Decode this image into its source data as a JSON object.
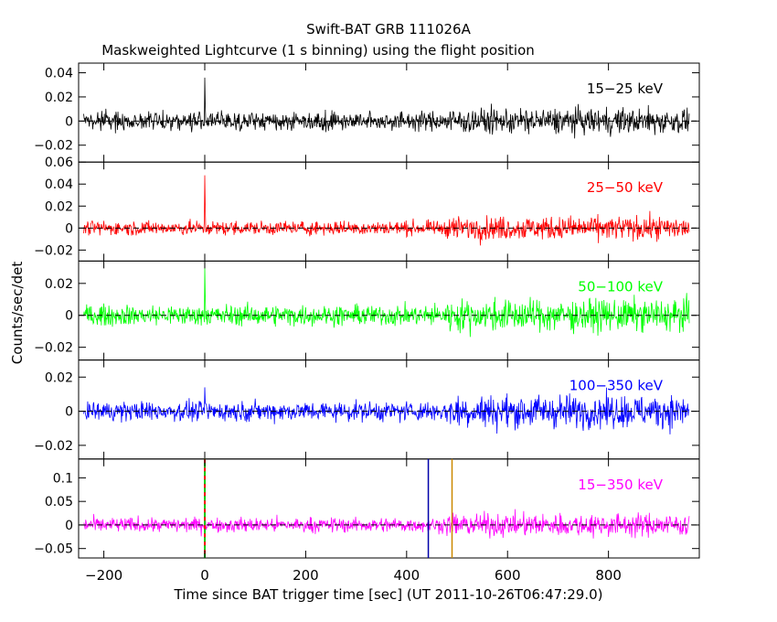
{
  "chart_data": {
    "type": "line",
    "title": "Swift-BAT GRB 111026A",
    "subtitle": "Maskweighted Lightcurve (1 s binning) using the flight position",
    "xlabel": "Time since BAT trigger time [sec] (UT 2011-10-26T06:47:29.0)",
    "ylabel": "Counts/sec/det",
    "xlim": [
      -250,
      980
    ],
    "xticks": [
      -200,
      0,
      200,
      400,
      600,
      800
    ],
    "x_range_data": [
      -240,
      960
    ],
    "panels": [
      {
        "name": "15-25 keV",
        "label": "15−25 keV",
        "color": "#000000",
        "ylim": [
          -0.034,
          0.048
        ],
        "yticks": [
          -0.02,
          0,
          0.02,
          0.04
        ],
        "ytick_labels": [
          "−0.02",
          "0",
          "0.02",
          "0.04"
        ],
        "noise_before_500": 0.0055,
        "noise_after_500": 0.0075,
        "peak_at_0": 0.036
      },
      {
        "name": "25-50 keV",
        "label": "25−50 keV",
        "color": "#ff0000",
        "ylim": [
          -0.03,
          0.06
        ],
        "yticks": [
          -0.02,
          0,
          0.02,
          0.04,
          0.06
        ],
        "ytick_labels": [
          "−0.02",
          "0",
          "0.02",
          "0.04",
          "0.06"
        ],
        "noise_before_500": 0.0045,
        "noise_after_500": 0.0075,
        "peak_at_0": 0.048
      },
      {
        "name": "50-100 keV",
        "label": "50−100 keV",
        "color": "#00ff00",
        "ylim": [
          -0.028,
          0.034
        ],
        "yticks": [
          -0.02,
          0,
          0.02
        ],
        "ytick_labels": [
          "−0.02",
          "0",
          "0.02"
        ],
        "noise_before_500": 0.0045,
        "noise_after_500": 0.007,
        "peak_at_0": 0.03
      },
      {
        "name": "100-350 keV",
        "label": "100−350 keV",
        "color": "#0000ff",
        "ylim": [
          -0.028,
          0.03
        ],
        "yticks": [
          -0.02,
          0,
          0.02
        ],
        "ytick_labels": [
          "−0.02",
          "0",
          "0.02"
        ],
        "noise_before_500": 0.004,
        "noise_after_500": 0.0068,
        "peak_at_0": 0.014
      },
      {
        "name": "15-350 keV",
        "label": "15−350 keV",
        "color": "#ff00ff",
        "ylim": [
          -0.07,
          0.14
        ],
        "yticks": [
          -0.05,
          0,
          0.05,
          0.1
        ],
        "ytick_labels": [
          "−0.05",
          "0",
          "0.05",
          "0.1"
        ],
        "noise_before_500": 0.011,
        "noise_after_500": 0.017,
        "peak_at_0": 0.04,
        "markers": [
          {
            "x": 0,
            "color": "#ff0000",
            "style": "dashed"
          },
          {
            "x": 0,
            "color": "#00cc00",
            "style": "dashed-offset"
          },
          {
            "x": 443,
            "color": "#0000aa",
            "style": "solid"
          },
          {
            "x": 490,
            "color": "#cc8800",
            "style": "solid"
          }
        ]
      }
    ]
  }
}
